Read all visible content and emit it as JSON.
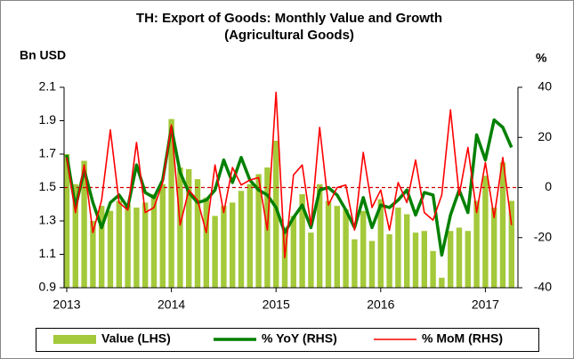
{
  "chart_data": {
    "type": "bar_line",
    "title": "TH:  Export of Goods: Monthly Value and Growth",
    "subtitle": "(Agricultural Goods)",
    "ylabel": "Bn USD",
    "y2label": "%",
    "categories": [
      "2013",
      null,
      null,
      null,
      null,
      null,
      null,
      null,
      null,
      null,
      null,
      null,
      "2014",
      null,
      null,
      null,
      null,
      null,
      null,
      null,
      null,
      null,
      null,
      null,
      "2015",
      null,
      null,
      null,
      null,
      null,
      null,
      null,
      null,
      null,
      null,
      null,
      "2016",
      null,
      null,
      null,
      null,
      null,
      null,
      null,
      null,
      null,
      null,
      null,
      "2017",
      null,
      null,
      null
    ],
    "series": [
      {
        "name": "Value (LHS)",
        "type": "bar",
        "color": "#a4c93a",
        "axis": "y",
        "values": [
          1.7,
          1.52,
          1.66,
          1.3,
          1.39,
          1.36,
          1.42,
          1.4,
          1.38,
          1.41,
          1.46,
          1.52,
          1.91,
          1.62,
          1.61,
          1.55,
          1.44,
          1.33,
          1.39,
          1.41,
          1.48,
          1.52,
          1.58,
          1.62,
          1.78,
          1.26,
          1.33,
          1.46,
          1.23,
          1.52,
          1.42,
          1.39,
          1.37,
          1.19,
          1.36,
          1.18,
          1.43,
          1.22,
          1.38,
          1.34,
          1.23,
          1.24,
          1.12,
          0.96,
          1.24,
          1.26,
          1.24,
          1.42,
          1.57,
          1.38,
          1.65,
          1.42
        ]
      },
      {
        "name": "% YoY (RHS)",
        "type": "line",
        "color": "#008000",
        "axis": "y2",
        "values": [
          13,
          -8,
          7,
          -6,
          -16,
          -6,
          -3,
          -8,
          9,
          -2,
          -4,
          3,
          24,
          6,
          -2,
          -6,
          -5,
          -1,
          11,
          2,
          12,
          3,
          -1,
          -3,
          -8,
          -18,
          -12,
          -7,
          -16,
          -1,
          0,
          -3,
          -9,
          -16,
          -4,
          -16,
          -7,
          -8,
          -5,
          -1,
          -11,
          -2,
          -3,
          -27,
          -11,
          -1,
          -10,
          21,
          11,
          27,
          24,
          16
        ]
      },
      {
        "name": "% MoM (RHS)",
        "type": "line",
        "color": "#ff0000",
        "axis": "y2",
        "values": [
          12,
          -10,
          9,
          -18,
          -5,
          23,
          -6,
          -9,
          18,
          -10,
          -8,
          2,
          25,
          -15,
          -1,
          -5,
          -18,
          9,
          -10,
          8,
          1,
          3,
          4,
          -17,
          38,
          -28,
          5,
          9,
          -15,
          24,
          -7,
          0,
          1,
          -17,
          14,
          -8,
          -1,
          -17,
          2,
          -6,
          11,
          -10,
          -13,
          -3,
          31,
          -3,
          16,
          -10,
          10,
          -12,
          12,
          -15
        ]
      }
    ],
    "ylim": [
      0.9,
      2.1
    ],
    "yticks": [
      0.9,
      1.1,
      1.3,
      1.5,
      1.7,
      1.9,
      2.1
    ],
    "y2lim": [
      -40,
      40
    ],
    "y2ticks": [
      -40,
      -20,
      0,
      20,
      40
    ],
    "reference_line": 0,
    "legend": "bottom"
  }
}
